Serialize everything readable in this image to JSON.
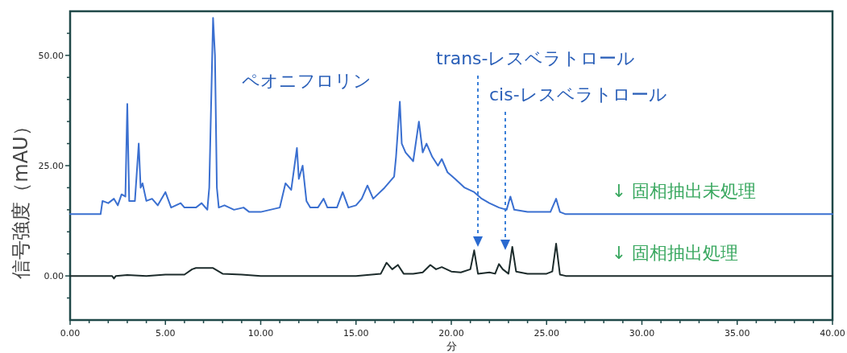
{
  "chart_data": {
    "type": "line",
    "xlabel": "分",
    "ylabel": "信号強度（mAU）",
    "xlim": [
      0,
      40
    ],
    "ylim": [
      -10,
      60
    ],
    "xticks": [
      {
        "value": 0,
        "label": "0.00"
      },
      {
        "value": 1,
        "label": null
      },
      {
        "value": 2,
        "label": null
      },
      {
        "value": 3,
        "label": null
      },
      {
        "value": 4,
        "label": null
      },
      {
        "value": 5,
        "label": "5.00"
      },
      {
        "value": 6,
        "label": null
      },
      {
        "value": 7,
        "label": null
      },
      {
        "value": 8,
        "label": null
      },
      {
        "value": 9,
        "label": null
      },
      {
        "value": 10,
        "label": "10.00"
      },
      {
        "value": 11,
        "label": null
      },
      {
        "value": 12,
        "label": null
      },
      {
        "value": 13,
        "label": null
      },
      {
        "value": 14,
        "label": null
      },
      {
        "value": 15,
        "label": "15.00"
      },
      {
        "value": 16,
        "label": null
      },
      {
        "value": 17,
        "label": null
      },
      {
        "value": 18,
        "label": null
      },
      {
        "value": 19,
        "label": null
      },
      {
        "value": 20,
        "label": "20.00"
      },
      {
        "value": 21,
        "label": null
      },
      {
        "value": 22,
        "label": null
      },
      {
        "value": 23,
        "label": null
      },
      {
        "value": 24,
        "label": null
      },
      {
        "value": 25,
        "label": "25.00"
      },
      {
        "value": 26,
        "label": null
      },
      {
        "value": 27,
        "label": null
      },
      {
        "value": 28,
        "label": null
      },
      {
        "value": 29,
        "label": null
      },
      {
        "value": 30,
        "label": "30.00"
      },
      {
        "value": 31,
        "label": null
      },
      {
        "value": 32,
        "label": null
      },
      {
        "value": 33,
        "label": null
      },
      {
        "value": 34,
        "label": null
      },
      {
        "value": 35,
        "label": "35.00"
      },
      {
        "value": 36,
        "label": null
      },
      {
        "value": 37,
        "label": null
      },
      {
        "value": 38,
        "label": null
      },
      {
        "value": 39,
        "label": null
      },
      {
        "value": 40,
        "label": "40.00"
      }
    ],
    "yticks": [
      {
        "value": -5,
        "label": null
      },
      {
        "value": 0,
        "label": "0.00"
      },
      {
        "value": 5,
        "label": null
      },
      {
        "value": 10,
        "label": null
      },
      {
        "value": 15,
        "label": null
      },
      {
        "value": 20,
        "label": null
      },
      {
        "value": 25,
        "label": "25.00"
      },
      {
        "value": 30,
        "label": null
      },
      {
        "value": 35,
        "label": null
      },
      {
        "value": 40,
        "label": null
      },
      {
        "value": 45,
        "label": null
      },
      {
        "value": 50,
        "label": "50.00"
      },
      {
        "value": 55,
        "label": null
      }
    ],
    "grid": false,
    "legend": false,
    "marker": "none",
    "line_style": "solid",
    "series": [
      {
        "name": "↓ 固相抽出未処理",
        "color": "#3a6fd0",
        "x": [
          0,
          1.6,
          1.7,
          2.0,
          2.3,
          2.5,
          2.7,
          2.9,
          3.0,
          3.1,
          3.4,
          3.6,
          3.7,
          3.8,
          4.0,
          4.3,
          4.6,
          5.0,
          5.3,
          5.8,
          6.0,
          6.6,
          6.9,
          7.2,
          7.3,
          7.5,
          7.6,
          7.7,
          7.8,
          8.1,
          8.6,
          9.1,
          9.4,
          10,
          11,
          11.3,
          11.6,
          11.9,
          12.0,
          12.2,
          12.4,
          12.6,
          13.0,
          13.3,
          13.5,
          14.0,
          14.3,
          14.6,
          15.0,
          15.3,
          15.6,
          15.9,
          16.5,
          17.0,
          17.1,
          17.3,
          17.4,
          17.6,
          18.0,
          18.3,
          18.5,
          18.7,
          19.0,
          19.3,
          19.5,
          19.8,
          20.2,
          20.7,
          21.2,
          21.6,
          22.0,
          22.5,
          22.9,
          23.1,
          23.3,
          24,
          25.2,
          25.5,
          25.7,
          26,
          40
        ],
        "values": [
          14,
          14,
          17,
          16.5,
          17.5,
          16,
          18.5,
          18,
          39,
          17,
          17,
          30,
          20,
          21,
          17,
          17.5,
          16,
          19,
          15.5,
          16.5,
          15.5,
          15.5,
          16.5,
          15,
          20,
          58.5,
          50,
          20,
          15.5,
          16,
          15,
          15.5,
          14.5,
          14.5,
          15.5,
          21,
          19.5,
          29,
          22,
          25,
          17,
          15.5,
          15.5,
          17.5,
          15.5,
          15.5,
          19,
          15.5,
          16,
          17.5,
          20.5,
          17.5,
          20,
          22.5,
          27,
          39.5,
          30,
          28,
          26,
          35,
          28,
          30,
          27,
          25,
          26.5,
          23.5,
          22,
          20,
          19,
          17.5,
          16.5,
          15.5,
          15,
          18,
          15,
          14.5,
          14.5,
          17.5,
          14.5,
          14,
          14
        ]
      },
      {
        "name": "↓ 固相抽出処理",
        "color": "#1c2b2b",
        "x": [
          0,
          2.2,
          2.3,
          2.4,
          3,
          4,
          5,
          6,
          6.4,
          6.6,
          7.5,
          8,
          9,
          10,
          15,
          16.3,
          16.6,
          16.9,
          17.2,
          17.5,
          18,
          18.5,
          18.9,
          19.2,
          19.5,
          20,
          20.5,
          21,
          21.2,
          21.4,
          22,
          22.3,
          22.5,
          22.7,
          23.0,
          23.2,
          23.4,
          24,
          25,
          25.3,
          25.5,
          25.7,
          26,
          40
        ],
        "values": [
          0,
          0,
          -0.6,
          0,
          0.2,
          0,
          0.3,
          0.3,
          1.5,
          1.8,
          1.8,
          0.5,
          0.3,
          0,
          0,
          0.5,
          3,
          1.5,
          2.5,
          0.5,
          0.5,
          0.8,
          2.5,
          1.5,
          2,
          1,
          0.8,
          1.5,
          5.8,
          0.5,
          0.8,
          0.5,
          2.7,
          1.5,
          0.5,
          6.6,
          1,
          0.5,
          0.5,
          1,
          7.3,
          0.3,
          0,
          0
        ]
      }
    ],
    "annotations": [
      "ペオニフロリン",
      "trans-レスベラトロール",
      "cis-レスベラトロール"
    ]
  }
}
